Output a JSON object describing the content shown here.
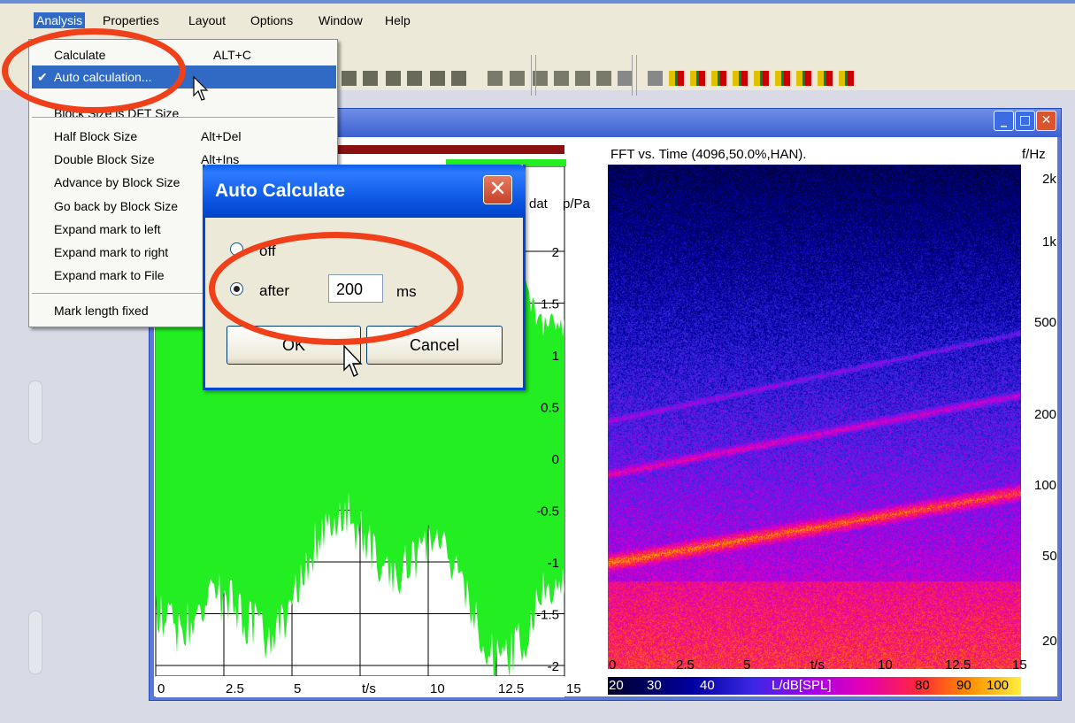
{
  "menubar": {
    "items": [
      {
        "label": "Analysis"
      },
      {
        "label": "Properties"
      },
      {
        "label": "Layout"
      },
      {
        "label": "Options"
      },
      {
        "label": "Window"
      },
      {
        "label": "Help"
      }
    ]
  },
  "analysis_menu": {
    "items": [
      {
        "label": "Calculate",
        "shortcut": "ALT+C"
      },
      {
        "label": "Auto calculation...",
        "checked": true,
        "shortcut": ""
      },
      {
        "label": "Block Size is DFT Size",
        "shortcut": ""
      },
      {
        "label": "Half Block Size",
        "shortcut": "Alt+Del"
      },
      {
        "label": "Double Block Size",
        "shortcut": "Alt+Ins"
      },
      {
        "label": "Advance by Block Size",
        "shortcut": ""
      },
      {
        "label": "Go back by Block Size",
        "shortcut": ""
      },
      {
        "label": "Expand mark to left",
        "shortcut": ""
      },
      {
        "label": "Expand mark to right",
        "shortcut": ""
      },
      {
        "label": "Expand mark to File",
        "shortcut": ""
      },
      {
        "label": "Mark length fixed",
        "shortcut": ""
      }
    ],
    "check_glyph": "✔"
  },
  "dialog": {
    "title": "Auto Calculate",
    "option_off": "off",
    "option_after": "after",
    "after_value": "200",
    "unit": "ms",
    "ok_label": "OK",
    "cancel_label": "Cancel",
    "selected": "after"
  },
  "left_plot": {
    "header": "dat",
    "ylabel": "p/Pa",
    "xlabel": "t/s",
    "yticks": [
      "2",
      "1.5",
      "1",
      "0.5",
      "0",
      "-0.5",
      "-1",
      "-1.5",
      "-2"
    ],
    "xticks": [
      "0",
      "2.5",
      "5",
      "t/s",
      "10",
      "12.5",
      "15"
    ],
    "signal_color": "#22ee22"
  },
  "spectrogram": {
    "title": "FFT vs. Time (4096,50.0%,HAN).",
    "ylabel": "f/Hz",
    "yticks": [
      "2k",
      "1k",
      "500",
      "200",
      "100",
      "50",
      "20"
    ],
    "xticks": [
      "0",
      "2.5",
      "5",
      "t/s",
      "10",
      "12.5",
      "15"
    ],
    "colorbar_labels": [
      "20",
      "30",
      "40",
      "L/dB[SPL]",
      "80",
      "90",
      "100"
    ]
  },
  "colors": {
    "annotation_red": "#f0401a",
    "xp_blue": "#0a54e0",
    "menu_highlight": "#316ac5"
  }
}
